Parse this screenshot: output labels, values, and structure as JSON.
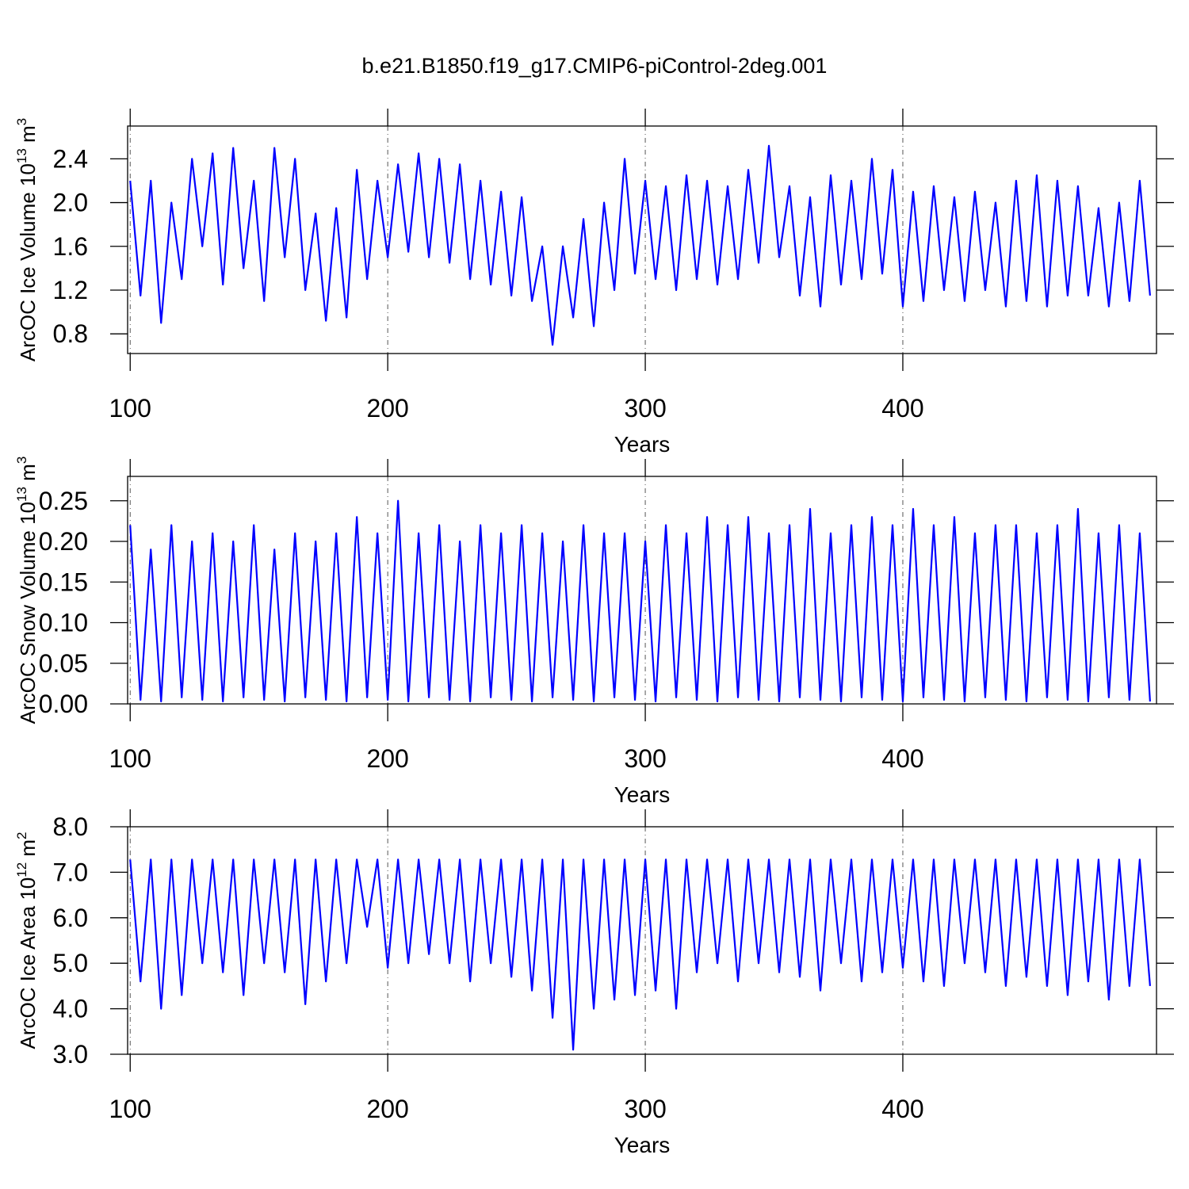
{
  "title": "b.e21.B1850.f19_g17.CMIP6-piControl-2deg.001",
  "chart_data": [
    {
      "type": "line",
      "ylabel": [
        "ArcOC Ice Volume 10",
        "13",
        " m",
        "3"
      ],
      "xlabel": "Years",
      "color": "#0000ff",
      "xgrid": true,
      "xlim": [
        99,
        498.5
      ],
      "xticks": [
        100,
        200,
        300,
        400
      ],
      "ylim": [
        0.62,
        2.7
      ],
      "yticks": [
        0.8,
        1.2,
        1.6,
        {
          "value": 2.0,
          "label": "2.0"
        },
        2.4
      ],
      "x": [
        100,
        104,
        108,
        112,
        116,
        120,
        124,
        128,
        132,
        136,
        140,
        144,
        148,
        152,
        156,
        160,
        164,
        168,
        172,
        176,
        180,
        184,
        188,
        192,
        196,
        200,
        204,
        208,
        212,
        216,
        220,
        224,
        228,
        232,
        236,
        240,
        244,
        248,
        252,
        256,
        260,
        264,
        268,
        272,
        276,
        280,
        284,
        288,
        292,
        296,
        300,
        304,
        308,
        312,
        316,
        320,
        324,
        328,
        332,
        336,
        340,
        344,
        348,
        352,
        356,
        360,
        364,
        368,
        372,
        376,
        380,
        384,
        388,
        392,
        396,
        400,
        404,
        408,
        412,
        416,
        420,
        424,
        428,
        432,
        436,
        440,
        444,
        448,
        452,
        456,
        460,
        464,
        468,
        472,
        476,
        480,
        484,
        488,
        492,
        496
      ],
      "values": [
        2.2,
        1.15,
        2.2,
        0.9,
        2.0,
        1.3,
        2.4,
        1.6,
        2.45,
        1.25,
        2.5,
        1.4,
        2.2,
        1.1,
        2.5,
        1.5,
        2.4,
        1.2,
        1.9,
        0.92,
        1.95,
        0.95,
        2.3,
        1.3,
        2.2,
        1.5,
        2.35,
        1.55,
        2.45,
        1.5,
        2.4,
        1.45,
        2.35,
        1.3,
        2.2,
        1.25,
        2.1,
        1.15,
        2.05,
        1.1,
        1.6,
        0.7,
        1.6,
        0.95,
        1.85,
        0.87,
        2.0,
        1.2,
        2.4,
        1.35,
        2.2,
        1.3,
        2.15,
        1.2,
        2.25,
        1.3,
        2.2,
        1.25,
        2.15,
        1.3,
        2.3,
        1.45,
        2.52,
        1.5,
        2.15,
        1.15,
        2.05,
        1.05,
        2.25,
        1.25,
        2.2,
        1.3,
        2.4,
        1.35,
        2.3,
        1.05,
        2.1,
        1.1,
        2.15,
        1.2,
        2.05,
        1.1,
        2.1,
        1.2,
        2.0,
        1.05,
        2.2,
        1.1,
        2.25,
        1.05,
        2.2,
        1.15,
        2.15,
        1.15,
        1.95,
        1.05,
        2.0,
        1.1,
        2.2,
        1.15
      ]
    },
    {
      "type": "line",
      "ylabel": [
        "ArcOC Snow Volume 10",
        "13",
        " m",
        "3"
      ],
      "xlabel": "Years",
      "color": "#0000ff",
      "xgrid": true,
      "xlim": [
        99,
        498.5
      ],
      "xticks": [
        100,
        200,
        300,
        400
      ],
      "ylim": [
        0,
        0.28
      ],
      "yticks": [
        {
          "value": 0,
          "label": "0.00"
        },
        0.05,
        {
          "value": 0.1,
          "label": "0.10"
        },
        0.15,
        {
          "value": 0.2,
          "label": "0.20"
        },
        0.25
      ],
      "x": [
        100,
        104,
        108,
        112,
        116,
        120,
        124,
        128,
        132,
        136,
        140,
        144,
        148,
        152,
        156,
        160,
        164,
        168,
        172,
        176,
        180,
        184,
        188,
        192,
        196,
        200,
        204,
        208,
        212,
        216,
        220,
        224,
        228,
        232,
        236,
        240,
        244,
        248,
        252,
        256,
        260,
        264,
        268,
        272,
        276,
        280,
        284,
        288,
        292,
        296,
        300,
        304,
        308,
        312,
        316,
        320,
        324,
        328,
        332,
        336,
        340,
        344,
        348,
        352,
        356,
        360,
        364,
        368,
        372,
        376,
        380,
        384,
        388,
        392,
        396,
        400,
        404,
        408,
        412,
        416,
        420,
        424,
        428,
        432,
        436,
        440,
        444,
        448,
        452,
        456,
        460,
        464,
        468,
        472,
        476,
        480,
        484,
        488,
        492,
        496
      ],
      "values": [
        0.22,
        0.005,
        0.19,
        0.003,
        0.22,
        0.008,
        0.2,
        0.005,
        0.21,
        0.003,
        0.2,
        0.008,
        0.22,
        0.005,
        0.19,
        0.003,
        0.21,
        0.008,
        0.2,
        0.005,
        0.21,
        0.003,
        0.23,
        0.008,
        0.21,
        0.005,
        0.25,
        0.003,
        0.21,
        0.008,
        0.22,
        0.005,
        0.2,
        0.003,
        0.22,
        0.008,
        0.21,
        0.005,
        0.22,
        0.003,
        0.21,
        0.008,
        0.2,
        0.005,
        0.22,
        0.003,
        0.21,
        0.008,
        0.21,
        0.005,
        0.2,
        0.003,
        0.22,
        0.008,
        0.21,
        0.005,
        0.23,
        0.003,
        0.22,
        0.008,
        0.23,
        0.005,
        0.21,
        0.003,
        0.22,
        0.008,
        0.24,
        0.005,
        0.21,
        0.003,
        0.22,
        0.008,
        0.23,
        0.005,
        0.22,
        0.003,
        0.24,
        0.008,
        0.22,
        0.005,
        0.23,
        0.003,
        0.21,
        0.008,
        0.22,
        0.005,
        0.22,
        0.003,
        0.21,
        0.008,
        0.22,
        0.005,
        0.24,
        0.003,
        0.21,
        0.008,
        0.22,
        0.005,
        0.21,
        0.003
      ]
    },
    {
      "type": "line",
      "ylabel": [
        "ArcOC Ice Area 10",
        "12",
        " m",
        "2"
      ],
      "xlabel": "Years",
      "color": "#0000ff",
      "xgrid": true,
      "xlim": [
        99,
        498.5
      ],
      "xticks": [
        100,
        200,
        300,
        400
      ],
      "ylim": [
        3,
        8
      ],
      "yticks": [
        {
          "value": 3,
          "label": "3.0"
        },
        {
          "value": 4,
          "label": "4.0"
        },
        {
          "value": 5,
          "label": "5.0"
        },
        {
          "value": 6,
          "label": "6.0"
        },
        {
          "value": 7,
          "label": "7.0"
        },
        {
          "value": 8,
          "label": "8.0"
        }
      ],
      "x": [
        100,
        104,
        108,
        112,
        116,
        120,
        124,
        128,
        132,
        136,
        140,
        144,
        148,
        152,
        156,
        160,
        164,
        168,
        172,
        176,
        180,
        184,
        188,
        192,
        196,
        200,
        204,
        208,
        212,
        216,
        220,
        224,
        228,
        232,
        236,
        240,
        244,
        248,
        252,
        256,
        260,
        264,
        268,
        272,
        276,
        280,
        284,
        288,
        292,
        296,
        300,
        304,
        308,
        312,
        316,
        320,
        324,
        328,
        332,
        336,
        340,
        344,
        348,
        352,
        356,
        360,
        364,
        368,
        372,
        376,
        380,
        384,
        388,
        392,
        396,
        400,
        404,
        408,
        412,
        416,
        420,
        424,
        428,
        432,
        436,
        440,
        444,
        448,
        452,
        456,
        460,
        464,
        468,
        472,
        476,
        480,
        484,
        488,
        492,
        496
      ],
      "values": [
        7.28,
        4.6,
        7.28,
        4.0,
        7.28,
        4.3,
        7.28,
        5.0,
        7.28,
        4.8,
        7.28,
        4.3,
        7.28,
        5.0,
        7.28,
        4.8,
        7.28,
        4.1,
        7.28,
        4.6,
        7.28,
        5.0,
        7.28,
        5.8,
        7.28,
        4.9,
        7.28,
        5.0,
        7.28,
        5.2,
        7.28,
        5.0,
        7.28,
        4.6,
        7.28,
        5.0,
        7.28,
        4.7,
        7.28,
        4.4,
        7.28,
        3.8,
        7.28,
        3.1,
        7.28,
        4.0,
        7.28,
        4.2,
        7.28,
        4.3,
        7.28,
        4.4,
        7.28,
        4.0,
        7.28,
        4.8,
        7.28,
        5.0,
        7.28,
        4.6,
        7.28,
        5.0,
        7.28,
        4.8,
        7.28,
        4.7,
        7.28,
        4.4,
        7.28,
        5.0,
        7.28,
        4.6,
        7.28,
        4.8,
        7.28,
        4.9,
        7.28,
        4.6,
        7.28,
        4.5,
        7.28,
        5.0,
        7.28,
        4.8,
        7.28,
        4.5,
        7.28,
        4.7,
        7.28,
        4.5,
        7.28,
        4.3,
        7.28,
        4.6,
        7.28,
        4.2,
        7.28,
        4.5,
        7.28,
        4.5
      ]
    }
  ]
}
